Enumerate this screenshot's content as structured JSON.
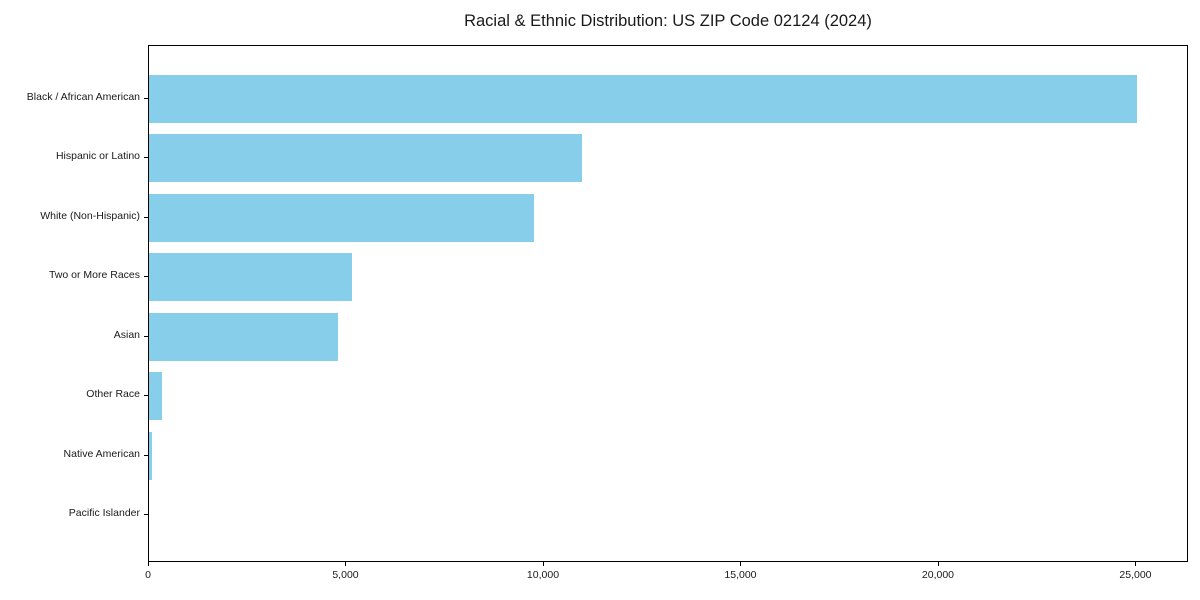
{
  "chart_data": {
    "type": "bar",
    "orientation": "horizontal",
    "title": "Racial & Ethnic Distribution: US ZIP Code 02124 (2024)",
    "categories": [
      "Black / African American",
      "Hispanic or Latino",
      "White (Non-Hispanic)",
      "Two or More Races",
      "Asian",
      "Other Race",
      "Native American",
      "Pacific Islander"
    ],
    "values": [
      25025,
      10950,
      9735,
      5140,
      4785,
      340,
      85,
      0
    ],
    "xlabel": "",
    "ylabel": "",
    "xlim": [
      0,
      26330
    ],
    "x_ticks": [
      0,
      5000,
      10000,
      15000,
      20000,
      25000
    ],
    "x_tick_labels": [
      "0",
      "5,000",
      "10,000",
      "15,000",
      "20,000",
      "25,000"
    ],
    "bar_color": "#87CEEB",
    "grid": false,
    "legend_position": "none"
  }
}
